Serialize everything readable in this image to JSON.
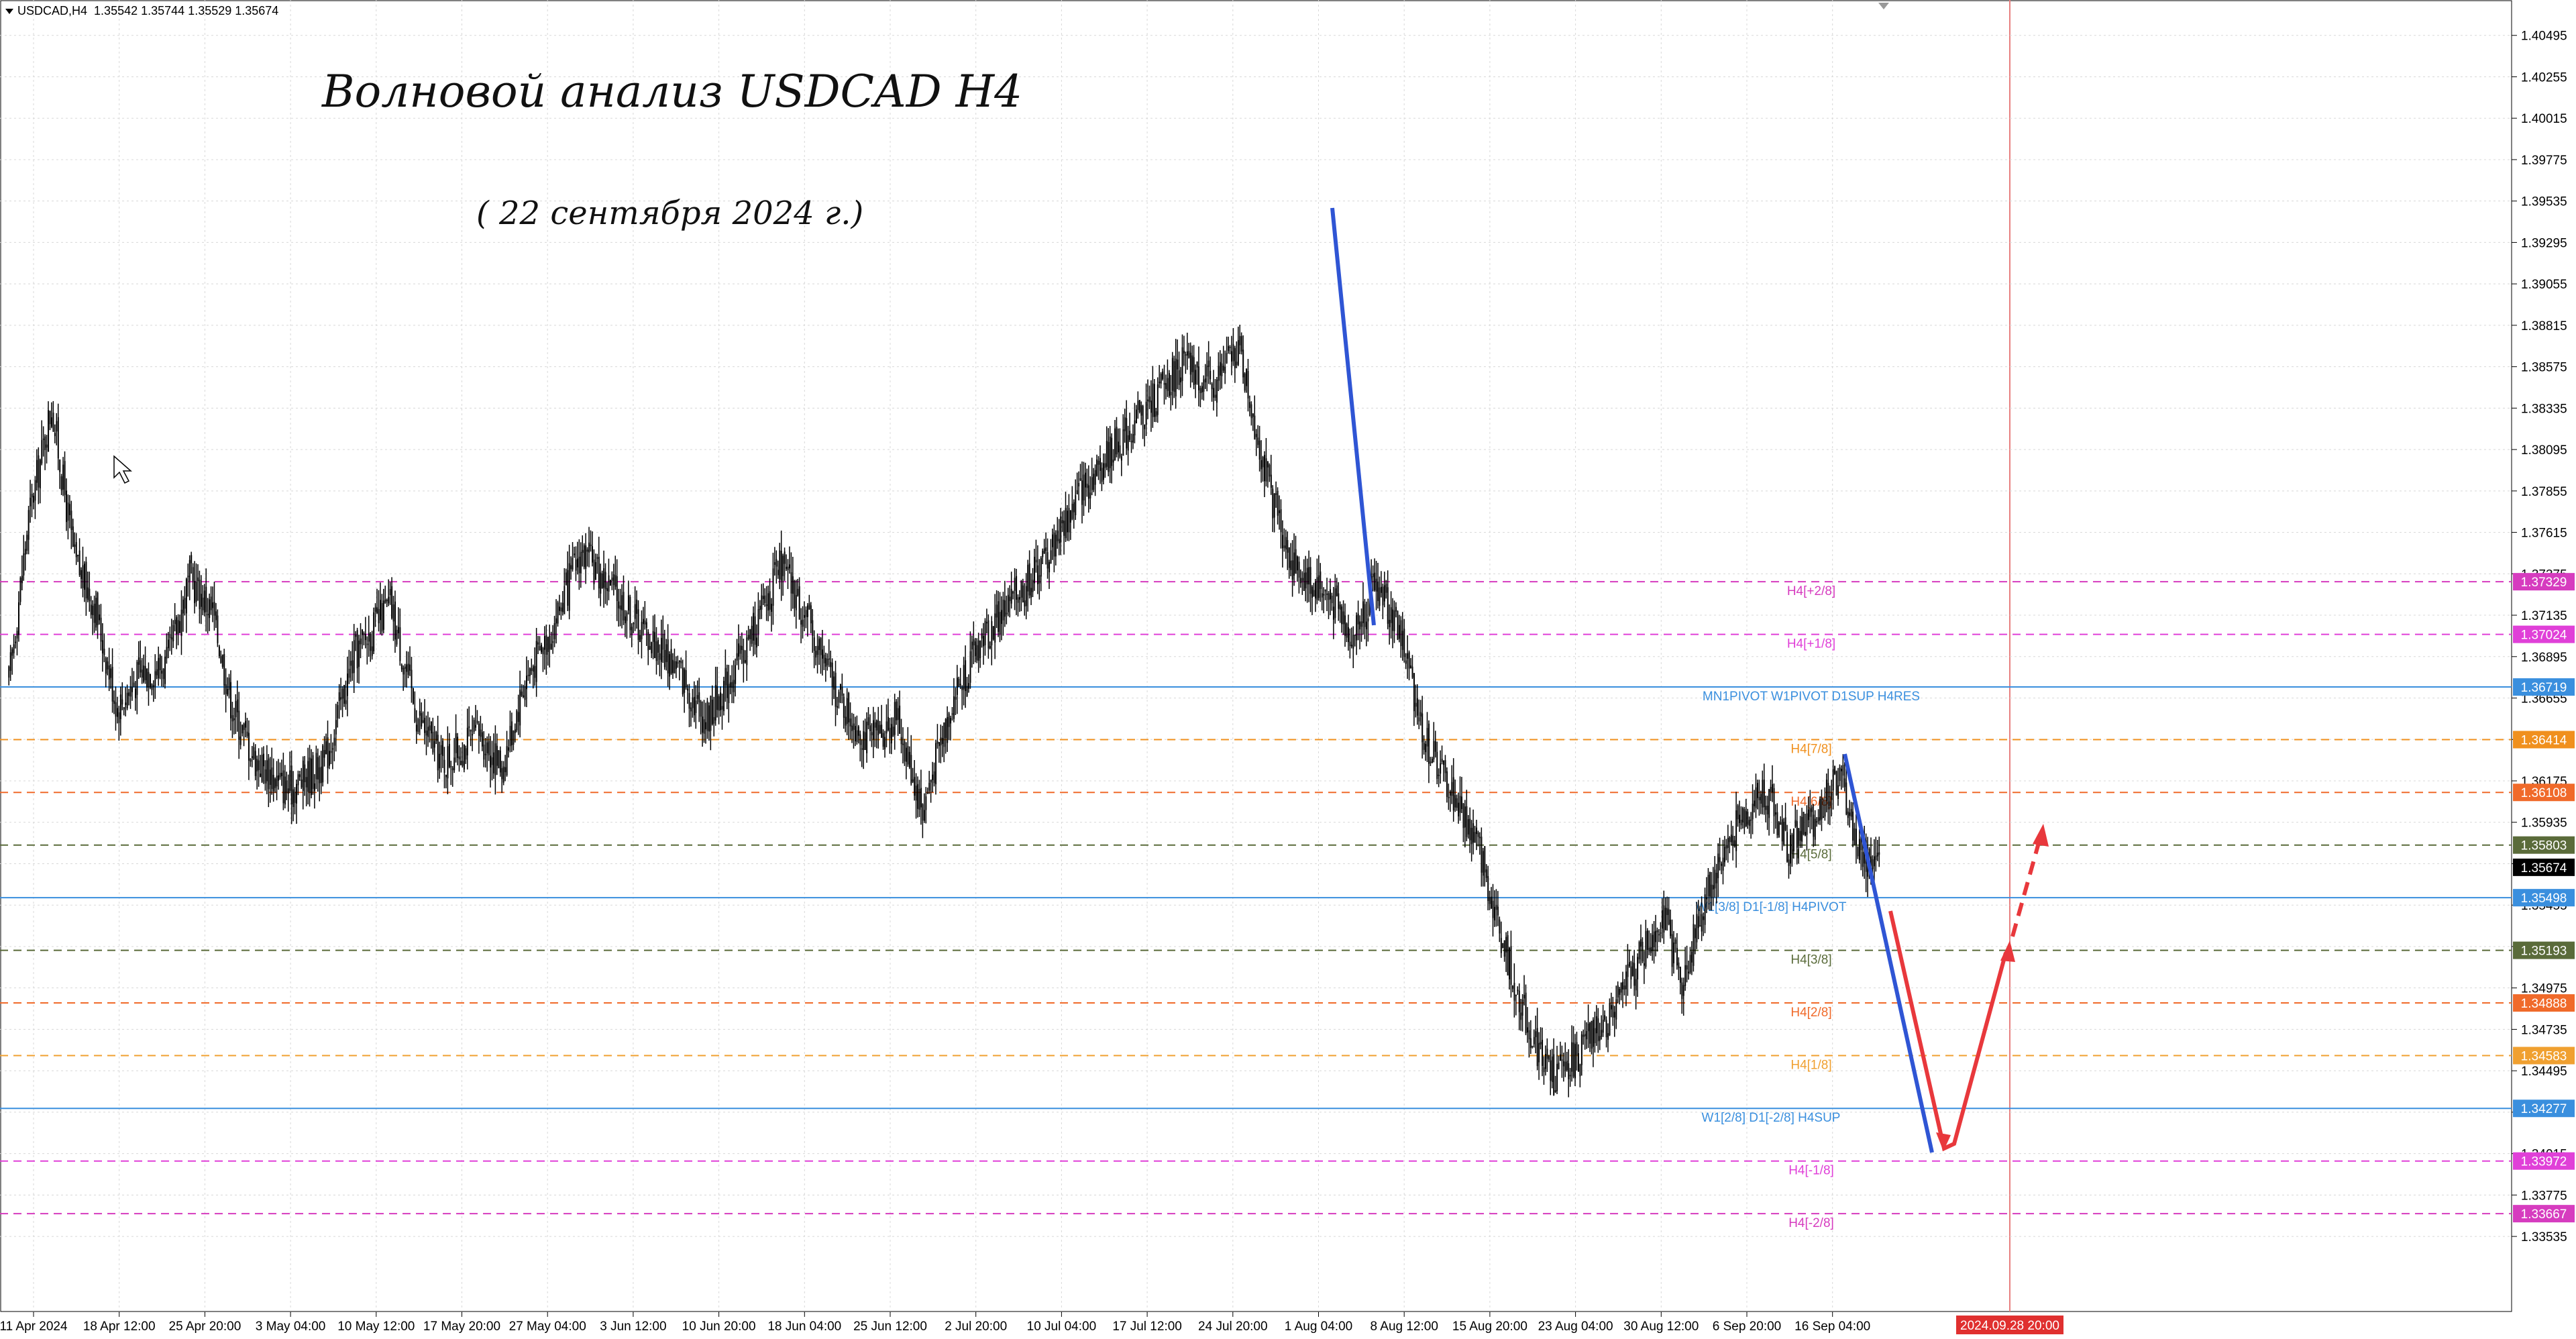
{
  "header": {
    "symbol": "USDCAD,H4",
    "ohlc": "1.35542 1.35744 1.35529 1.35674"
  },
  "title": "Волновой анализ USDCAD H4",
  "subtitle": "( 22 сентября 2024 г.)",
  "colors": {
    "grid": "#d8d8d8",
    "candles": "#000000",
    "blue_line": "#2f55d4",
    "red_line": "#e8383c",
    "time_marker": "#e88080"
  },
  "price_scale": {
    "min": 1.331,
    "max": 1.407,
    "ticks": [
      "1.40495",
      "1.40255",
      "1.40015",
      "1.39775",
      "1.39535",
      "1.39295",
      "1.39055",
      "1.38815",
      "1.38575",
      "1.38335",
      "1.38095",
      "1.37855",
      "1.37615",
      "1.37375",
      "1.37135",
      "1.36895",
      "1.36655",
      "1.36415",
      "1.36175",
      "1.35935",
      "1.35695",
      "1.35455",
      "1.35215",
      "1.34975",
      "1.34735",
      "1.34495",
      "1.34255",
      "1.34015",
      "1.33775",
      "1.33535"
    ]
  },
  "time_axis": {
    "labels": [
      "11 Apr 2024",
      "18 Apr 12:00",
      "25 Apr 20:00",
      "3 May 04:00",
      "10 May 12:00",
      "17 May 20:00",
      "27 May 04:00",
      "3 Jun 12:00",
      "10 Jun 20:00",
      "18 Jun 04:00",
      "25 Jun 12:00",
      "2 Jul 20:00",
      "10 Jul 04:00",
      "17 Jul 12:00",
      "24 Jul 20:00",
      "1 Aug 04:00",
      "8 Aug 12:00",
      "15 Aug 20:00",
      "23 Aug 04:00",
      "30 Aug 12:00",
      "6 Sep 20:00",
      "16 Sep 04:00"
    ],
    "future_marker": "2024.09.28 20:00"
  },
  "levels": [
    {
      "label": "H4[+2/8]",
      "price": 1.37329,
      "price_text": "1.37329",
      "color": "#d63cbf",
      "style": "dash"
    },
    {
      "label": "H4[+1/8]",
      "price": 1.37024,
      "price_text": "1.37024",
      "color": "#e040d8",
      "style": "dash"
    },
    {
      "label": "MN1PIVOT W1PIVOT D1SUP H4RES",
      "price": 1.36719,
      "price_text": "1.36719",
      "color": "#3a8fde",
      "style": "solid"
    },
    {
      "label": "H4[7/8]",
      "price": 1.36414,
      "price_text": "1.36414",
      "color": "#f0901e",
      "style": "dash"
    },
    {
      "label": "H4[6/8]",
      "price": 1.36108,
      "price_text": "1.36108",
      "color": "#f06a2a",
      "style": "dash"
    },
    {
      "label": "H4[5/8]",
      "price": 1.35803,
      "price_text": "1.35803",
      "color": "#5a6b3a",
      "style": "dash"
    },
    {
      "label": "W1[3/8] D1[-1/8] H4PIVOT",
      "price": 1.35498,
      "price_text": "1.35498",
      "color": "#3a8fde",
      "style": "solid"
    },
    {
      "label": "H4[3/8]",
      "price": 1.35193,
      "price_text": "1.35193",
      "color": "#5a6b3a",
      "style": "dash"
    },
    {
      "label": "H4[2/8]",
      "price": 1.34888,
      "price_text": "1.34888",
      "color": "#f06a2a",
      "style": "dash"
    },
    {
      "label": "H4[1/8]",
      "price": 1.34583,
      "price_text": "1.34583",
      "color": "#f0a030",
      "style": "dash"
    },
    {
      "label": "W1[2/8] D1[-2/8] H4SUP",
      "price": 1.34277,
      "price_text": "1.34277",
      "color": "#3a8fde",
      "style": "solid"
    },
    {
      "label": "H4[-1/8]",
      "price": 1.33972,
      "price_text": "1.33972",
      "color": "#e040d8",
      "style": "dash"
    },
    {
      "label": "H4[-2/8]",
      "price": 1.33667,
      "price_text": "1.33667",
      "color": "#d63cbf",
      "style": "dash"
    }
  ],
  "current_price": {
    "price": 1.35674,
    "price_text": "1.35674"
  },
  "chart_data": {
    "type": "candlestick",
    "symbol": "USDCAD",
    "timeframe": "H4",
    "ylim": [
      1.331,
      1.407
    ],
    "close_path": [
      [
        0,
        1.3675
      ],
      [
        12,
        1.377
      ],
      [
        26,
        1.3835
      ],
      [
        40,
        1.3745
      ],
      [
        52,
        1.372
      ],
      [
        66,
        1.366
      ],
      [
        80,
        1.368
      ],
      [
        96,
        1.3685
      ],
      [
        110,
        1.3735
      ],
      [
        124,
        1.3715
      ],
      [
        136,
        1.366
      ],
      [
        150,
        1.363
      ],
      [
        170,
        1.3612
      ],
      [
        192,
        1.3628
      ],
      [
        210,
        1.369
      ],
      [
        232,
        1.372
      ],
      [
        248,
        1.3656
      ],
      [
        264,
        1.3628
      ],
      [
        286,
        1.3645
      ],
      [
        300,
        1.3625
      ],
      [
        314,
        1.3676
      ],
      [
        330,
        1.3705
      ],
      [
        348,
        1.375
      ],
      [
        366,
        1.373
      ],
      [
        386,
        1.3705
      ],
      [
        406,
        1.3684
      ],
      [
        424,
        1.3653
      ],
      [
        446,
        1.369
      ],
      [
        470,
        1.3742
      ],
      [
        488,
        1.3705
      ],
      [
        508,
        1.366
      ],
      [
        524,
        1.364
      ],
      [
        540,
        1.3655
      ],
      [
        556,
        1.36
      ],
      [
        574,
        1.3665
      ],
      [
        592,
        1.37
      ],
      [
        612,
        1.3724
      ],
      [
        630,
        1.3745
      ],
      [
        652,
        1.3785
      ],
      [
        672,
        1.381
      ],
      [
        690,
        1.383
      ],
      [
        714,
        1.386
      ],
      [
        732,
        1.3845
      ],
      [
        748,
        1.387
      ],
      [
        766,
        1.379
      ],
      [
        782,
        1.374
      ],
      [
        800,
        1.3728
      ],
      [
        818,
        1.3702
      ],
      [
        832,
        1.3732
      ],
      [
        846,
        1.3705
      ],
      [
        862,
        1.364
      ],
      [
        878,
        1.361
      ],
      [
        894,
        1.358
      ],
      [
        910,
        1.352
      ],
      [
        926,
        1.347
      ],
      [
        940,
        1.3445
      ],
      [
        956,
        1.346
      ],
      [
        972,
        1.348
      ],
      [
        990,
        1.351
      ],
      [
        1006,
        1.354
      ],
      [
        1018,
        1.35
      ],
      [
        1034,
        1.3555
      ],
      [
        1050,
        1.359
      ],
      [
        1068,
        1.3612
      ],
      [
        1082,
        1.358
      ],
      [
        1098,
        1.3595
      ],
      [
        1114,
        1.362
      ],
      [
        1126,
        1.3575
      ],
      [
        1138,
        1.3567
      ]
    ],
    "annotations": {
      "blue_wave_1": [
        [
          1,
          1.394
        ],
        [
          1,
          1.3725
        ]
      ],
      "blue_wave_2": [
        [
          1,
          1.363
        ],
        [
          2,
          1.3425
        ]
      ],
      "red_forecast": [
        [
          1,
          1.3565
        ],
        [
          2,
          1.343
        ],
        [
          3,
          1.354
        ]
      ],
      "red_dashed": [
        [
          3,
          1.354
        ],
        [
          4,
          1.361
        ]
      ]
    }
  }
}
